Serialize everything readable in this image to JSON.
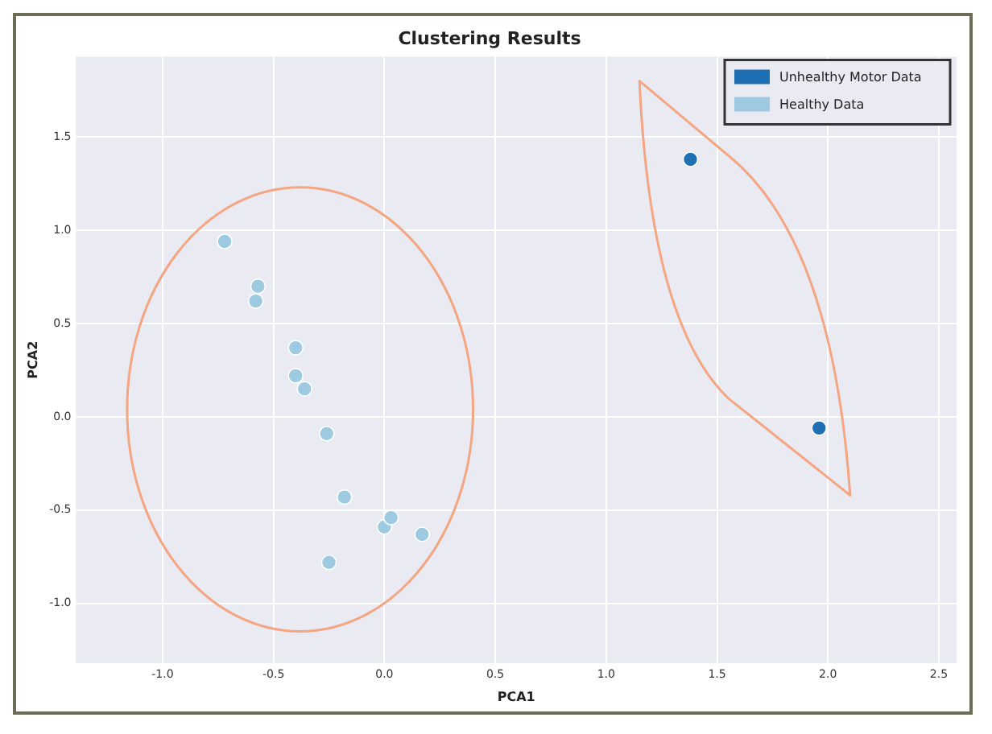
{
  "chart_data": {
    "type": "scatter",
    "title": "Clustering Results",
    "xlabel": "PCA1",
    "ylabel": "PCA2",
    "xlim": [
      -1.39,
      2.58
    ],
    "ylim": [
      -1.32,
      1.93
    ],
    "xticks": [
      {
        "value": -1,
        "label": "-1.0"
      },
      {
        "value": -0.5,
        "label": "-0.5"
      },
      {
        "value": 0,
        "label": "0.0"
      },
      {
        "value": 0.5,
        "label": "0.5"
      },
      {
        "value": 1,
        "label": "1.0"
      },
      {
        "value": 1.5,
        "label": "1.5"
      },
      {
        "value": 2,
        "label": "2.0"
      },
      {
        "value": 2.5,
        "label": "2.5"
      }
    ],
    "yticks": [
      {
        "value": -1,
        "label": "-1.0"
      },
      {
        "value": -0.5,
        "label": "-0.5"
      },
      {
        "value": 0,
        "label": "0.0"
      },
      {
        "value": 0.5,
        "label": "0.5"
      },
      {
        "value": 1,
        "label": "1.0"
      },
      {
        "value": 1.5,
        "label": "1.5"
      }
    ],
    "grid": true,
    "legend": "top right",
    "marker": "circle",
    "series": [
      {
        "name": "Unhealthy Motor Data",
        "color": "#1f6fb4",
        "x": [
          1.38,
          1.96
        ],
        "values": [
          1.38,
          -0.06
        ]
      },
      {
        "name": "Healthy Data",
        "color": "#9ecae1",
        "x": [
          -0.72,
          -0.57,
          -0.58,
          -0.4,
          -0.4,
          -0.36,
          -0.26,
          -0.18,
          0.0,
          0.03,
          0.17,
          -0.25
        ],
        "values": [
          0.94,
          0.7,
          0.62,
          0.37,
          0.22,
          0.15,
          -0.09,
          -0.43,
          -0.59,
          -0.54,
          -0.63,
          -0.78
        ]
      }
    ]
  }
}
